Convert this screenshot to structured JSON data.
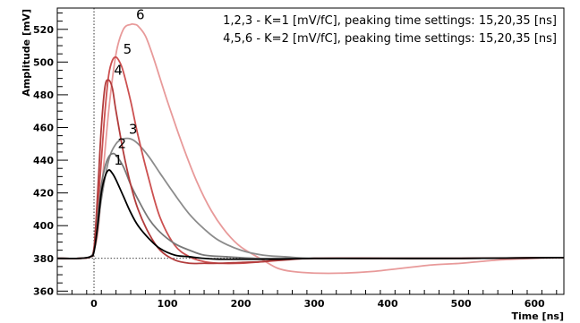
{
  "chart_data": {
    "type": "line",
    "title": "",
    "xlabel": "Time [ns]",
    "ylabel": "Amplitude [mV]",
    "xlim": [
      -50,
      640
    ],
    "ylim": [
      358,
      533
    ],
    "x_ticks": [
      0,
      100,
      200,
      300,
      400,
      500,
      600
    ],
    "y_ticks": [
      360,
      380,
      400,
      420,
      440,
      460,
      480,
      500,
      520
    ],
    "baseline": 380,
    "legend": [
      "1,2,3 - K=1 [mV/fC], peaking time settings: 15,20,35 [ns]",
      "4,5,6 - K=2 [mV/fC], peaking time settings: 15,20,35 [ns]"
    ],
    "series": [
      {
        "label": "1",
        "color": "#000000",
        "x": [
          -50,
          -20,
          -5,
          0,
          5,
          10,
          15,
          20,
          25,
          30,
          40,
          50,
          60,
          75,
          90,
          110,
          130,
          150,
          170,
          200,
          250,
          300,
          400,
          500,
          640
        ],
        "y": [
          380,
          380,
          381,
          384,
          400,
          420,
          430,
          434,
          432,
          428,
          418,
          408,
          400,
          392,
          386,
          382,
          381,
          380,
          379.5,
          379.5,
          379.5,
          380,
          380,
          380,
          380.5
        ]
      },
      {
        "label": "2",
        "color": "#787878",
        "x": [
          -50,
          -20,
          -5,
          0,
          5,
          10,
          15,
          20,
          25,
          30,
          40,
          50,
          60,
          75,
          90,
          110,
          130,
          150,
          180,
          220,
          250,
          300,
          400,
          500,
          640
        ],
        "y": [
          380,
          380,
          381,
          386,
          405,
          425,
          436,
          442,
          444,
          443,
          436,
          425,
          416,
          404,
          396,
          389,
          385,
          382,
          381,
          380,
          380,
          380,
          380,
          380,
          380.5
        ]
      },
      {
        "label": "3",
        "color": "#8c8c8c",
        "x": [
          -50,
          -20,
          -5,
          0,
          5,
          10,
          20,
          30,
          40,
          50,
          60,
          75,
          90,
          110,
          130,
          150,
          170,
          200,
          230,
          260,
          300,
          400,
          500,
          640
        ],
        "y": [
          380,
          380,
          381,
          385,
          398,
          416,
          440,
          450,
          453,
          453,
          450,
          442,
          432,
          419,
          407,
          398,
          391,
          385,
          382,
          381,
          380,
          380,
          380,
          380.5
        ]
      },
      {
        "label": "4",
        "color": "#b23c3c",
        "x": [
          -50,
          -20,
          -5,
          0,
          5,
          10,
          15,
          20,
          25,
          30,
          40,
          50,
          60,
          75,
          90,
          110,
          130,
          150,
          170,
          200,
          230,
          250,
          300,
          400,
          500,
          640
        ],
        "y": [
          380,
          380,
          381,
          386,
          420,
          460,
          485,
          489,
          484,
          470,
          445,
          425,
          410,
          395,
          385,
          379,
          377,
          377,
          377,
          377.5,
          378,
          379,
          380,
          380,
          380,
          380.5
        ]
      },
      {
        "label": "5",
        "color": "#cc5050",
        "x": [
          -50,
          -20,
          -5,
          0,
          5,
          10,
          15,
          20,
          25,
          30,
          35,
          40,
          50,
          60,
          75,
          90,
          110,
          130,
          150,
          170,
          200,
          230,
          260,
          300,
          400,
          500,
          640
        ],
        "y": [
          380,
          380,
          381,
          386,
          410,
          440,
          470,
          492,
          501,
          503,
          500,
          494,
          476,
          455,
          428,
          405,
          388,
          381,
          378,
          377,
          377,
          378,
          379,
          380,
          380,
          380,
          380.5
        ]
      },
      {
        "label": "6",
        "color": "#e89a9a",
        "x": [
          -50,
          -20,
          -5,
          0,
          5,
          10,
          20,
          30,
          40,
          50,
          55,
          60,
          70,
          80,
          90,
          100,
          120,
          140,
          160,
          180,
          200,
          230,
          250,
          270,
          300,
          340,
          380,
          420,
          460,
          500,
          550,
          600,
          640
        ],
        "y": [
          380,
          380,
          381,
          385,
          395,
          420,
          470,
          505,
          520,
          523,
          523,
          522,
          516,
          504,
          490,
          476,
          450,
          427,
          409,
          396,
          387,
          379,
          374,
          372,
          371,
          371,
          372,
          374,
          376,
          377,
          379,
          380,
          380.5
        ]
      }
    ]
  }
}
